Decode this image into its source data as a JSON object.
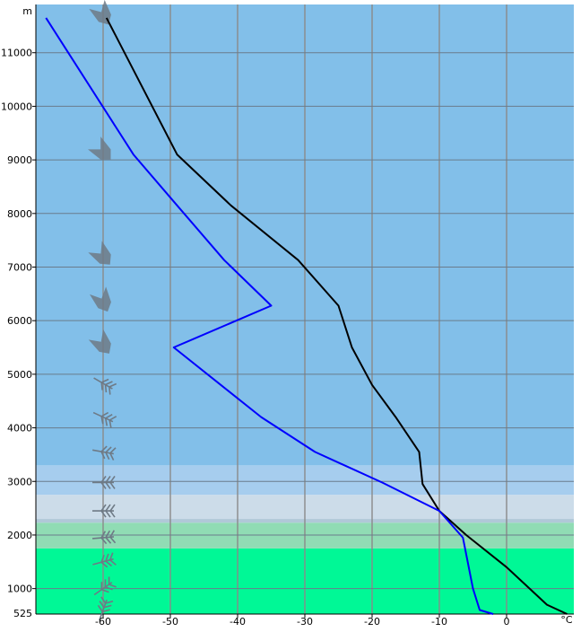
{
  "chart_data": {
    "type": "line",
    "title": "",
    "xlabel": "°C",
    "ylabel": "m",
    "xlim": [
      -70,
      10
    ],
    "ylim": [
      525,
      11900
    ],
    "x_ticks": [
      -60,
      -50,
      -40,
      -30,
      -20,
      -10,
      0
    ],
    "y_ticks": [
      1000,
      2000,
      3000,
      4000,
      5000,
      6000,
      7000,
      8000,
      9000,
      10000,
      11000
    ],
    "y_bottom_label": "525",
    "grid": true,
    "layers": [
      {
        "from": 525,
        "to": 1750,
        "color": "#00f896"
      },
      {
        "from": 1750,
        "to": 2230,
        "color": "#90dcb4"
      },
      {
        "from": 2230,
        "to": 2300,
        "color": "#b0c8d8"
      },
      {
        "from": 2300,
        "to": 2750,
        "color": "#ccdce9"
      },
      {
        "from": 2750,
        "to": 3300,
        "color": "#a6cdee"
      },
      {
        "from": 3300,
        "to": 11900,
        "color": "#82bfe9"
      }
    ],
    "series": [
      {
        "color": "#000000",
        "points": [
          [
            9,
            525
          ],
          [
            6,
            700
          ],
          [
            0,
            1400
          ],
          [
            -6,
            2000
          ],
          [
            -10,
            2450
          ],
          [
            -12.5,
            2950
          ],
          [
            -13,
            3550
          ],
          [
            -16.5,
            4200
          ],
          [
            -20,
            4800
          ],
          [
            -23,
            5500
          ],
          [
            -25,
            6280
          ],
          [
            -31,
            7130
          ],
          [
            -41,
            8150
          ],
          [
            -49,
            9100
          ],
          [
            -59.5,
            11650
          ]
        ]
      },
      {
        "color": "#0000ff",
        "points": [
          [
            -2,
            525
          ],
          [
            -4,
            600
          ],
          [
            -5,
            1000
          ],
          [
            -6.5,
            1950
          ],
          [
            -10,
            2450
          ],
          [
            -18.5,
            2980
          ],
          [
            -28.5,
            3550
          ],
          [
            -36.5,
            4200
          ],
          [
            -42.5,
            4800
          ],
          [
            -49.5,
            5500
          ],
          [
            -35,
            6280
          ],
          [
            -42,
            7130
          ],
          [
            -49,
            8150
          ],
          [
            -55.5,
            9100
          ],
          [
            -68.5,
            11650
          ]
        ]
      }
    ],
    "wind_barbs": [
      {
        "height": 11700,
        "kind": "pennant",
        "direction": 330
      },
      {
        "height": 9150,
        "kind": "pennant",
        "direction": 315
      },
      {
        "height": 7200,
        "kind": "pennant",
        "direction": 320
      },
      {
        "height": 6350,
        "kind": "pennant",
        "direction": 335
      },
      {
        "height": 5550,
        "kind": "pennant",
        "direction": 325
      },
      {
        "height": 4830,
        "kind": "feathers",
        "direction": 300
      },
      {
        "height": 4200,
        "kind": "feathers",
        "direction": 295
      },
      {
        "height": 3550,
        "kind": "feathers",
        "direction": 280
      },
      {
        "height": 2980,
        "kind": "feathers",
        "direction": 270
      },
      {
        "height": 2450,
        "kind": "feathers",
        "direction": 270
      },
      {
        "height": 1950,
        "kind": "feathers",
        "direction": 265
      },
      {
        "height": 1500,
        "kind": "feathers",
        "direction": 255
      },
      {
        "height": 1000,
        "kind": "feathers",
        "direction": 235
      },
      {
        "height": 600,
        "kind": "feathers",
        "direction": 200
      }
    ],
    "barb_color": "#6e7a86"
  }
}
